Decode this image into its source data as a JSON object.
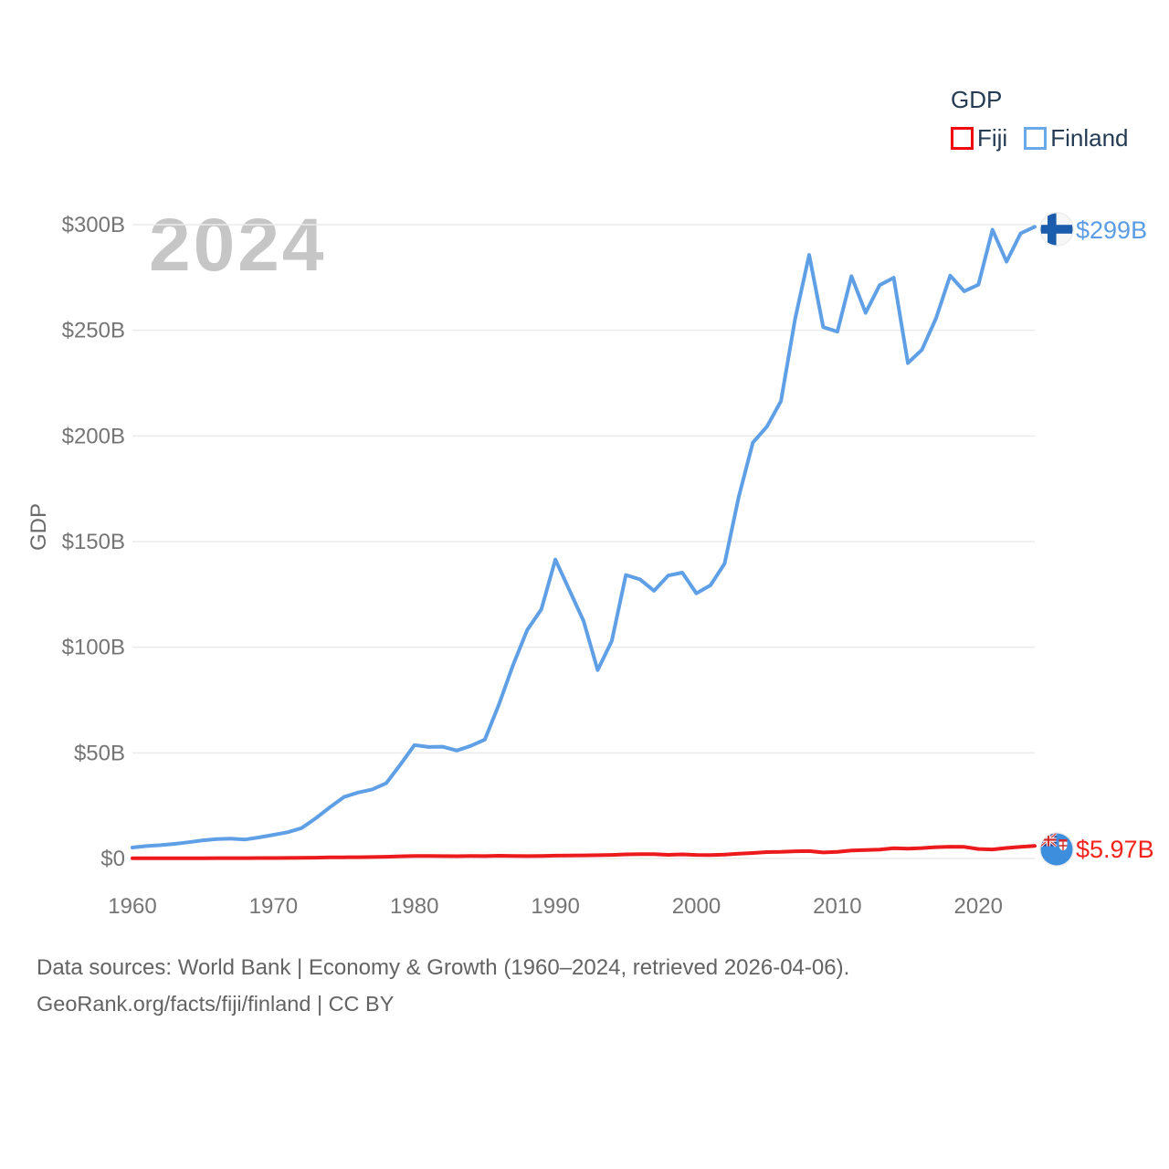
{
  "legend": {
    "title": "GDP",
    "items": [
      {
        "key": "fiji",
        "label": "Fiji"
      },
      {
        "key": "finland",
        "label": "Finland"
      }
    ]
  },
  "watermark": "2024",
  "y_axis_title": "GDP",
  "footer": {
    "line1": "Data sources: World Bank | Economy & Growth (1960–2024, retrieved 2026-04-06).",
    "line2": "GeoRank.org/facts/fiji/finland | CC BY"
  },
  "colors": {
    "fiji_line": "#ed1a1d",
    "finland_line": "#5f9fe6",
    "fiji_label": "#f3231c",
    "finland_label": "#5b9ce5",
    "legend_fiji_box": "#f00a10",
    "legend_finland_box": "#6aa9e9",
    "watermark": "#c6c6c6",
    "grid": "#ebebeb",
    "tick_text": "#757575",
    "footer_text": "#636363",
    "legend_text": "#243b53"
  },
  "chart_data": {
    "type": "line",
    "title": "GDP",
    "xlabel": "",
    "ylabel": "GDP",
    "xlim": [
      1960,
      2024
    ],
    "ylim": [
      0,
      300
    ],
    "grid": true,
    "legend_position": "top-right",
    "units": "billions USD",
    "xticks": [
      1960,
      1970,
      1980,
      1990,
      2000,
      2010,
      2020
    ],
    "ytick_values": [
      0,
      50,
      100,
      150,
      200,
      250,
      300
    ],
    "ytick_labels": [
      "$0",
      "$50B",
      "$100B",
      "$150B",
      "$200B",
      "$250B",
      "$300B"
    ],
    "x": [
      1960,
      1961,
      1962,
      1963,
      1964,
      1965,
      1966,
      1967,
      1968,
      1969,
      1970,
      1971,
      1972,
      1973,
      1974,
      1975,
      1976,
      1977,
      1978,
      1979,
      1980,
      1981,
      1982,
      1983,
      1984,
      1985,
      1986,
      1987,
      1988,
      1989,
      1990,
      1991,
      1992,
      1993,
      1994,
      1995,
      1996,
      1997,
      1998,
      1999,
      2000,
      2001,
      2002,
      2003,
      2004,
      2005,
      2006,
      2007,
      2008,
      2009,
      2010,
      2011,
      2012,
      2013,
      2014,
      2015,
      2016,
      2017,
      2018,
      2019,
      2020,
      2021,
      2022,
      2023,
      2024
    ],
    "series": [
      {
        "name": "Fiji",
        "key": "fiji",
        "end_label": "$5.97B",
        "end_value": 5.97,
        "values": [
          0.11,
          0.12,
          0.13,
          0.13,
          0.14,
          0.15,
          0.17,
          0.17,
          0.18,
          0.2,
          0.22,
          0.25,
          0.31,
          0.4,
          0.5,
          0.58,
          0.62,
          0.68,
          0.83,
          1.02,
          1.2,
          1.21,
          1.12,
          1.1,
          1.15,
          1.14,
          1.29,
          1.23,
          1.11,
          1.22,
          1.34,
          1.38,
          1.48,
          1.56,
          1.7,
          1.93,
          2.09,
          2.05,
          1.73,
          1.96,
          1.68,
          1.65,
          1.83,
          2.25,
          2.61,
          3.01,
          3.1,
          3.42,
          3.52,
          2.87,
          3.14,
          3.77,
          3.97,
          4.19,
          4.86,
          4.68,
          4.93,
          5.35,
          5.58,
          5.5,
          4.48,
          4.3,
          4.98,
          5.55,
          5.97
        ]
      },
      {
        "name": "Finland",
        "key": "finland",
        "end_label": "$299B",
        "end_value": 299,
        "values": [
          5.2,
          5.9,
          6.3,
          6.9,
          7.7,
          8.6,
          9.2,
          9.4,
          9.0,
          10.0,
          11.2,
          12.4,
          14.4,
          19.0,
          24.2,
          29.1,
          31.2,
          32.7,
          35.6,
          44.4,
          53.7,
          52.8,
          52.9,
          51.1,
          53.3,
          56.3,
          73.0,
          91.6,
          108.2,
          117.9,
          141.5,
          126.9,
          112.4,
          89.2,
          103.0,
          134.2,
          132.1,
          126.7,
          133.9,
          135.3,
          125.5,
          129.3,
          139.6,
          171.0,
          196.8,
          204.4,
          216.5,
          255.4,
          285.7,
          251.5,
          249.4,
          275.6,
          258.3,
          271.4,
          274.9,
          234.5,
          240.8,
          255.7,
          275.9,
          268.5,
          271.6,
          297.6,
          282.5,
          295.9,
          299.0
        ]
      }
    ]
  }
}
